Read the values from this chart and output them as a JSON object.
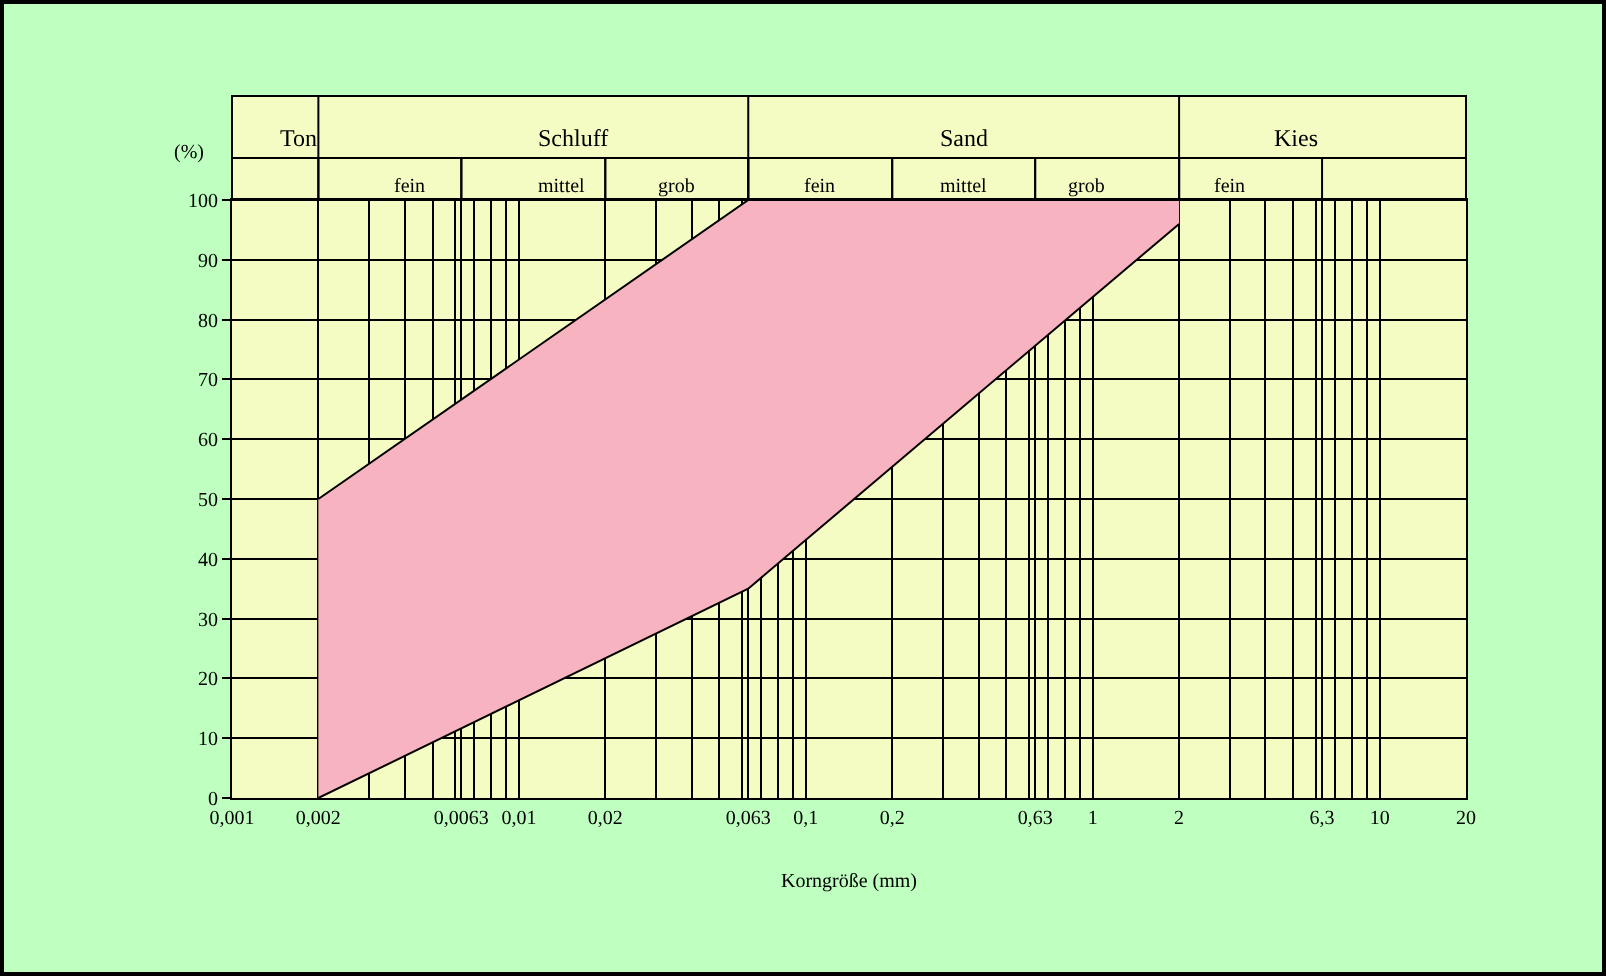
{
  "chart_data": {
    "type": "area",
    "xlabel": "Korngröße (mm)",
    "ylabel": "(%)",
    "log": "x",
    "grid": true,
    "xlim": [
      0.001,
      20
    ],
    "ylim": [
      0,
      100
    ],
    "xticks": [
      {
        "value": 0.001,
        "label": "0,001"
      },
      {
        "value": 0.002,
        "label": "0,002"
      },
      {
        "value": 0.0063,
        "label": "0,0063"
      },
      {
        "value": 0.01,
        "label": "0,01"
      },
      {
        "value": 0.02,
        "label": "0,02"
      },
      {
        "value": 0.063,
        "label": "0,063"
      },
      {
        "value": 0.1,
        "label": "0,1"
      },
      {
        "value": 0.2,
        "label": "0,2"
      },
      {
        "value": 0.63,
        "label": "0,63"
      },
      1,
      2,
      {
        "value": 6.3,
        "label": "6,3"
      },
      10,
      20
    ],
    "yticks": [
      0,
      10,
      20,
      30,
      40,
      50,
      60,
      70,
      80,
      90,
      100
    ],
    "series": [
      {
        "type": "line",
        "color": "#000000",
        "x": [
          0.002,
          0.063,
          2
        ],
        "values": [
          0,
          35,
          96
        ]
      },
      {
        "color": "#f7b3bf",
        "x": [
          0.002,
          0.063,
          2
        ],
        "values": [
          50,
          100,
          100
        ]
      }
    ],
    "annotations": [
      "Ton",
      "Schluff",
      "Sand",
      "Kies",
      "fein",
      "mittel",
      "grob",
      "fein",
      "mittel",
      "grob",
      "fein"
    ]
  }
}
